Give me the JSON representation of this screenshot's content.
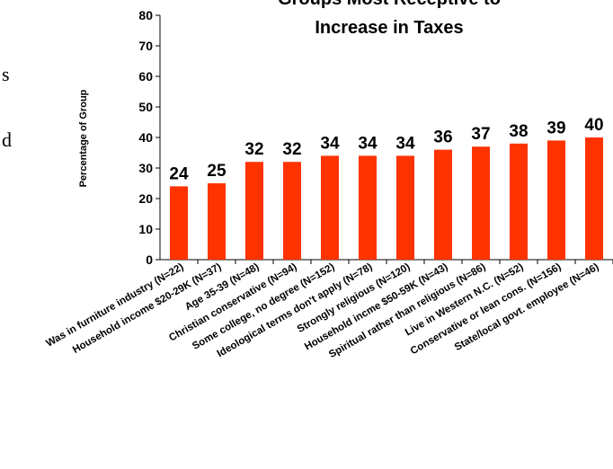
{
  "side_text": [
    "s",
    "d"
  ],
  "chart_data": {
    "type": "bar",
    "title_lines": [
      "Groups Most Receptive to",
      "Increase in Taxes"
    ],
    "ylabel": "Percentage of Group",
    "xlabel": "",
    "ylim": [
      0,
      80
    ],
    "yticks": [
      0,
      10,
      20,
      30,
      40,
      50,
      60,
      70,
      80
    ],
    "bar_color": "#ff3300",
    "categories": [
      "Was in furniture industry (N=22)",
      "Household income $20-29K (N=37)",
      "Age 35-39 (N=48)",
      "Christian conservative (N=94)",
      "Some college, no degree (N=152)",
      "Ideological terms don't apply (N=78)",
      "Strongly religious (N=120)",
      "Household incme $50-59K (N=43)",
      "Spiritual rather than religious (N=86)",
      "Live in Western N.C. (N=52)",
      "Conservative or lean cons. (N=156)",
      "State/local govt. employee (N=46)"
    ],
    "values": [
      24,
      25,
      32,
      32,
      34,
      34,
      34,
      36,
      37,
      38,
      39,
      40
    ]
  }
}
